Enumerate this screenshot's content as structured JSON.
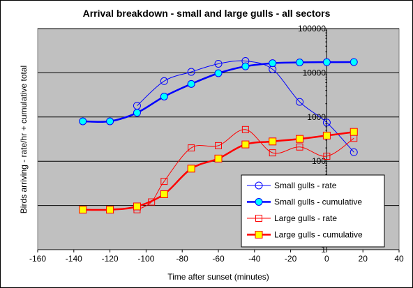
{
  "chart_data": {
    "type": "line",
    "title": "Arrival breakdown - small and large gulls - all sectors",
    "xlabel": "Time after sunset (minutes)",
    "ylabel": "Birds arriving - rate/hr + cumulative total",
    "xlim": [
      -160,
      40
    ],
    "x_ticks": [
      "-160",
      "-140",
      "-120",
      "-100",
      "-80",
      "-60",
      "-40",
      "-20",
      "0",
      "20",
      "40"
    ],
    "ylim": [
      1,
      100000
    ],
    "y_scale": "log",
    "y_tick_values": [
      1,
      10,
      100,
      1000,
      10000,
      100000
    ],
    "y_tick_labels": [
      "1",
      "",
      "100",
      "1000",
      "10000",
      "100000"
    ],
    "grid": "horizontal",
    "plot_background": "#c0c0c0",
    "legend_position": "bottom-right",
    "series": [
      {
        "name": "Small gulls - rate",
        "color": "#0000ff",
        "marker": "circle-open",
        "line_width": "thin",
        "x": [
          -105,
          -90,
          -75,
          -60,
          -45,
          -30,
          -15,
          0,
          15
        ],
        "values": [
          1800,
          6500,
          10500,
          16000,
          18500,
          12000,
          2200,
          750,
          160
        ]
      },
      {
        "name": "Small gulls - cumulative",
        "color": "#0000ff",
        "marker": "circle-filled",
        "marker_fill": "#00ffff",
        "line_width": "thick",
        "x": [
          -135,
          -120,
          -105,
          -90,
          -75,
          -60,
          -45,
          -30,
          -15,
          0,
          15
        ],
        "values": [
          800,
          800,
          1250,
          2900,
          5600,
          9800,
          14000,
          16500,
          17200,
          17400,
          17500
        ]
      },
      {
        "name": "Large gulls - rate",
        "color": "#ff0000",
        "marker": "square-open",
        "line_width": "thin",
        "x": [
          -105,
          -97,
          -90,
          -75,
          -60,
          -45,
          -30,
          -15,
          0,
          15
        ],
        "values": [
          8,
          12,
          35,
          200,
          225,
          520,
          155,
          210,
          130,
          330
        ]
      },
      {
        "name": "Large gulls - cumulative",
        "color": "#ff0000",
        "marker": "square-filled",
        "marker_fill": "#ffff00",
        "line_width": "thick",
        "x": [
          -135,
          -120,
          -105,
          -90,
          -75,
          -60,
          -45,
          -30,
          -15,
          0,
          15
        ],
        "values": [
          8,
          8,
          9.5,
          18,
          68,
          115,
          240,
          280,
          320,
          380,
          460
        ]
      }
    ]
  }
}
